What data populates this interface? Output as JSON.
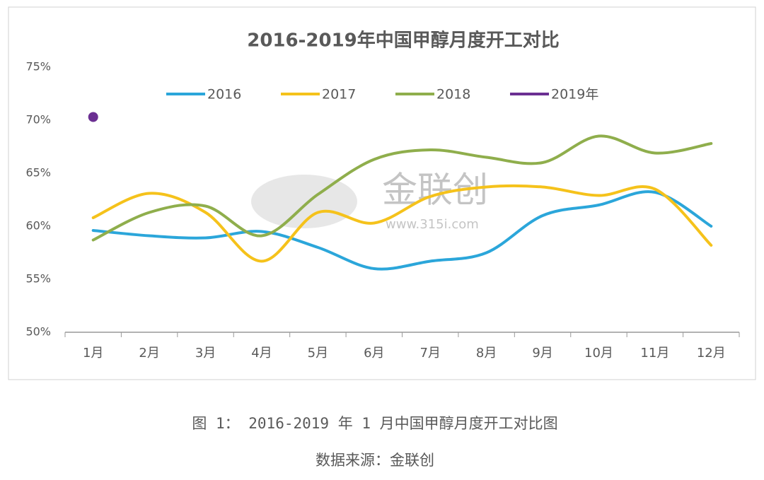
{
  "chart_data": {
    "type": "line",
    "title": "2016-2019年中国甲醇月度开工对比",
    "categories": [
      "1月",
      "2月",
      "3月",
      "4月",
      "5月",
      "6月",
      "7月",
      "8月",
      "9月",
      "10月",
      "11月",
      "12月"
    ],
    "series": [
      {
        "name": "2016",
        "color": "#2ba6da",
        "values": [
          59.6,
          59.1,
          58.9,
          59.5,
          58.0,
          56.0,
          56.7,
          57.5,
          61.0,
          62.0,
          63.2,
          60.0
        ]
      },
      {
        "name": "2017",
        "color": "#f5c21b",
        "values": [
          60.8,
          63.1,
          61.3,
          56.7,
          61.3,
          60.3,
          62.8,
          63.7,
          63.7,
          62.9,
          63.5,
          58.2
        ]
      },
      {
        "name": "2018",
        "color": "#8fae4c",
        "values": [
          58.7,
          61.3,
          61.9,
          59.1,
          63.0,
          66.3,
          67.2,
          66.5,
          66.0,
          68.5,
          66.9,
          67.8
        ]
      },
      {
        "name": "2019年",
        "color": "#6b2f92",
        "values": [
          70.3,
          null,
          null,
          null,
          null,
          null,
          null,
          null,
          null,
          null,
          null,
          null
        ]
      }
    ],
    "ylim": [
      50,
      75
    ],
    "yticks": [
      {
        "value": 50,
        "label": "50%"
      },
      {
        "value": 55,
        "label": "55%"
      },
      {
        "value": 60,
        "label": "60%"
      },
      {
        "value": 65,
        "label": "65%"
      },
      {
        "value": 70,
        "label": "70%"
      },
      {
        "value": 75,
        "label": "75%"
      }
    ],
    "grid": false,
    "legend": "top",
    "watermark": "金联创",
    "watermark_url": "www.315i.com",
    "caption": "图 1： 2016-2019 年 1 月中国甲醇月度开工对比图",
    "source": "数据来源：金联创"
  }
}
